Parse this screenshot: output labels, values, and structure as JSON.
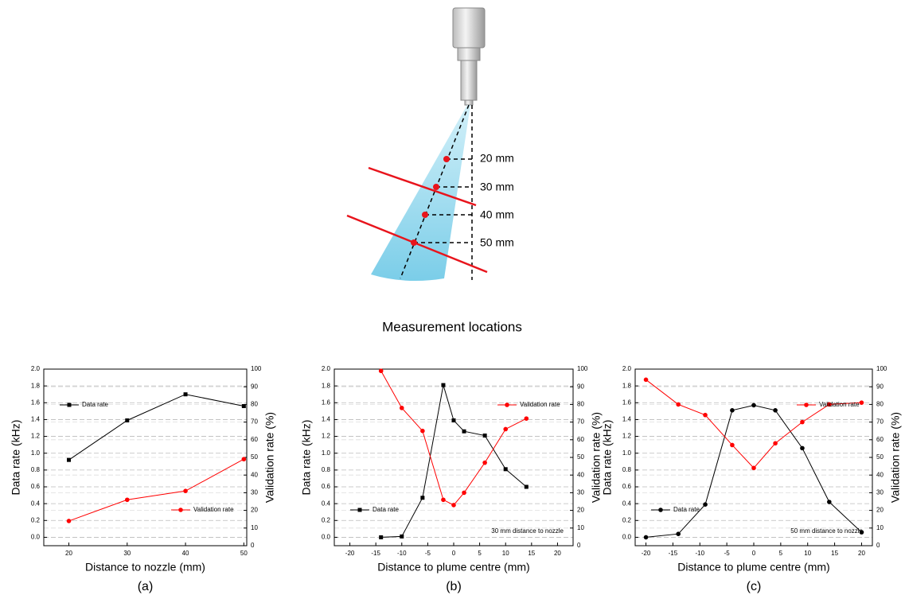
{
  "diagram": {
    "labels": [
      "20 mm",
      "30 mm",
      "40 mm",
      "50 mm"
    ],
    "caption": "Measurement locations"
  },
  "chart_data": [
    {
      "type": "line",
      "panel_label": "(a)",
      "x_label": "Distance to nozzle (mm)",
      "y_label": "Data rate (kHz)",
      "y2_label": "Validation rate (%)",
      "x": [
        20,
        30,
        40,
        50
      ],
      "series": [
        {
          "name": "Data rate",
          "color": "#000000",
          "marker": "square",
          "legend_position": "upper left",
          "values": [
            0.92,
            1.39,
            1.7,
            1.56
          ]
        },
        {
          "name": "Validation rate",
          "color": "#ff0000",
          "marker": "circle",
          "axis": "y2",
          "legend_position": "lower right",
          "values": [
            14,
            26,
            31,
            49
          ]
        }
      ],
      "xlim": [
        15.7,
        50.5
      ],
      "xticks": [
        20,
        30,
        40,
        50
      ],
      "ylim": [
        -0.1,
        2.0
      ],
      "yticks": [
        {
          "value": 0,
          "label": "0.0"
        },
        0.2,
        0.4,
        0.6,
        0.8,
        {
          "value": 1,
          "label": "1.0"
        },
        1.2,
        1.4,
        1.6,
        1.8,
        {
          "value": 2,
          "label": "2.0"
        }
      ],
      "y2lim": [
        0,
        100
      ],
      "y2ticks": [
        0,
        10,
        20,
        30,
        40,
        50,
        60,
        70,
        80,
        90,
        100
      ],
      "grid": true
    },
    {
      "type": "line",
      "panel_label": "(b)",
      "x_label": "Distance to plume centre (mm)",
      "y_label": "Data rate (kHz)",
      "y2_label": "Validation rate (%)",
      "annotation": "30 mm distance to nozzle",
      "x": [
        -14,
        -10,
        -6,
        -2,
        0,
        2,
        6,
        10,
        14
      ],
      "series": [
        {
          "name": "Data rate",
          "color": "#000000",
          "marker": "square",
          "legend_position": "lower left",
          "values": [
            0.0,
            0.01,
            0.47,
            1.81,
            1.39,
            1.26,
            1.21,
            0.81,
            0.6
          ]
        },
        {
          "name": "Validation rate",
          "color": "#ff0000",
          "marker": "circle",
          "axis": "y2",
          "legend_position": "upper right",
          "values": [
            99,
            78,
            65,
            26,
            23,
            30,
            47,
            66,
            72
          ]
        }
      ],
      "xlim": [
        -23,
        23
      ],
      "xticks": [
        -20,
        -15,
        -10,
        -5,
        0,
        5,
        10,
        15,
        20
      ],
      "ylim": [
        -0.1,
        2.0
      ],
      "yticks": [
        {
          "value": 0,
          "label": "0.0"
        },
        0.2,
        0.4,
        0.6,
        0.8,
        {
          "value": 1,
          "label": "1.0"
        },
        1.2,
        1.4,
        1.6,
        1.8,
        {
          "value": 2,
          "label": "2.0"
        }
      ],
      "y2lim": [
        0,
        100
      ],
      "y2ticks": [
        0,
        10,
        20,
        30,
        40,
        50,
        60,
        70,
        80,
        90,
        100
      ],
      "grid": true
    },
    {
      "type": "line",
      "panel_label": "(c)",
      "x_label": "Distance to plume centre (mm)",
      "y_label": "Data rate (kHz)",
      "y2_label": "Validation rate (%)",
      "annotation": "50 mm distance to nozzle",
      "x": [
        -20,
        -14,
        -9,
        -4,
        0,
        4,
        9,
        14,
        20
      ],
      "series": [
        {
          "name": "Data rate",
          "color": "#000000",
          "marker": "circle",
          "legend_position": "lower left",
          "values": [
            0.0,
            0.04,
            0.39,
            1.51,
            1.57,
            1.51,
            1.06,
            0.42,
            0.06
          ]
        },
        {
          "name": "Validation rate",
          "color": "#ff0000",
          "marker": "circle",
          "axis": "y2",
          "legend_position": "upper right",
          "values": [
            94,
            80,
            74,
            57,
            44,
            58,
            70,
            80,
            81
          ]
        }
      ],
      "xlim": [
        -22,
        22
      ],
      "xticks": [
        -20,
        -15,
        -10,
        -5,
        0,
        5,
        10,
        15,
        20
      ],
      "ylim": [
        -0.1,
        2.0
      ],
      "yticks": [
        {
          "value": 0,
          "label": "0.0"
        },
        0.2,
        0.4,
        0.6,
        0.8,
        {
          "value": 1,
          "label": "1.0"
        },
        1.2,
        1.4,
        1.6,
        1.8,
        {
          "value": 2,
          "label": "2.0"
        }
      ],
      "y2lim": [
        0,
        100
      ],
      "y2ticks": [
        0,
        10,
        20,
        30,
        40,
        50,
        60,
        70,
        80,
        90,
        100
      ],
      "grid": true
    }
  ]
}
